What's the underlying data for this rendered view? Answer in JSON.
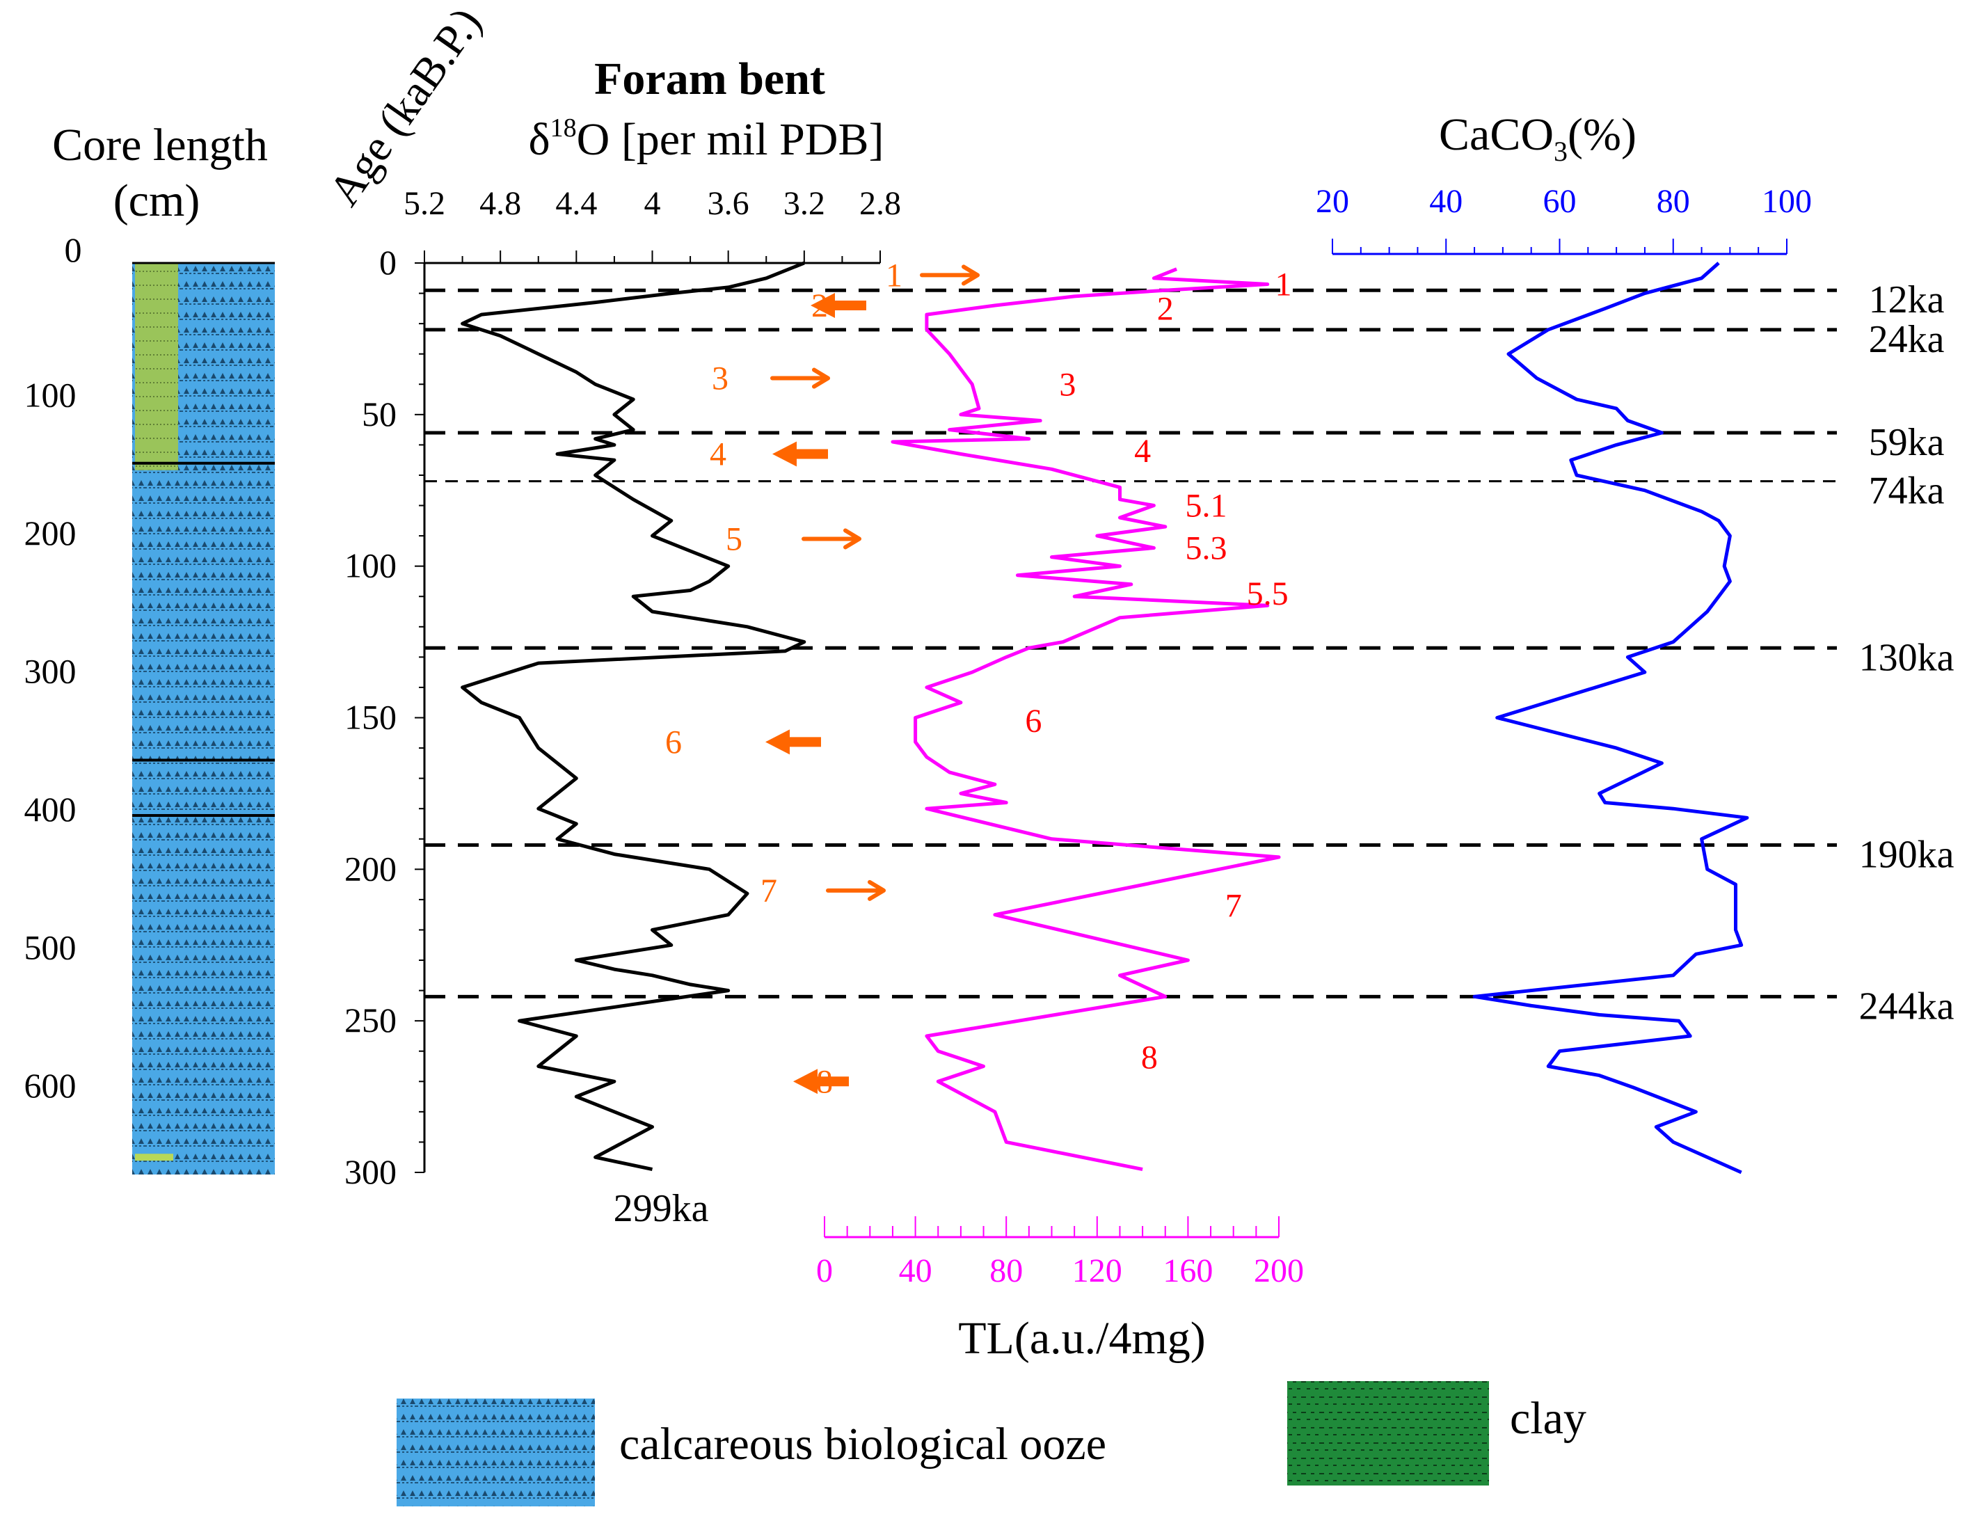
{
  "core": {
    "title_line1": "Core length",
    "title_line2": "(cm)",
    "depth_ticks": [
      "0",
      "100",
      "200",
      "300",
      "400",
      "500",
      "600"
    ],
    "depth_values": [
      0,
      100,
      200,
      300,
      400,
      500,
      600
    ],
    "depth_range": [
      0,
      660
    ],
    "clay_intervals": [
      [
        0,
        150
      ],
      [
        645,
        650
      ]
    ]
  },
  "age_axis": {
    "label": "Age (kaB.P.)",
    "ticks": [
      "0",
      "50",
      "100",
      "150",
      "200",
      "250",
      "300"
    ],
    "values": [
      0,
      50,
      100,
      150,
      200,
      250,
      300
    ]
  },
  "o18": {
    "title_line1": "Foram bent",
    "title_line2_main": "δ",
    "title_line2_sup": "18",
    "title_line2_rest": "O [per mil PDB]",
    "ticks": [
      "5.2",
      "4.8",
      "4.4",
      "4",
      "3.6",
      "3.2",
      "2.8"
    ],
    "tick_values": [
      5.2,
      4.8,
      4.4,
      4.0,
      3.6,
      3.2,
      2.8
    ],
    "end_label": "299ka",
    "color": "#000000"
  },
  "tl": {
    "label": "TL(a.u./4mg)",
    "ticks": [
      "0",
      "40",
      "80",
      "120",
      "160",
      "200"
    ],
    "tick_values": [
      0,
      40,
      80,
      120,
      160,
      200
    ],
    "color": "#ff00ff",
    "peak_labels": [
      {
        "text": "1",
        "age": 7,
        "tl": 202
      },
      {
        "text": "2",
        "age": 15,
        "tl": 150
      },
      {
        "text": "3",
        "age": 40,
        "tl": 107
      },
      {
        "text": "4",
        "age": 62,
        "tl": 140
      },
      {
        "text": "5.1",
        "age": 80,
        "tl": 168
      },
      {
        "text": "5.3",
        "age": 94,
        "tl": 168
      },
      {
        "text": "5.5",
        "age": 109,
        "tl": 195
      },
      {
        "text": "6",
        "age": 151,
        "tl": 92
      },
      {
        "text": "7",
        "age": 212,
        "tl": 180
      },
      {
        "text": "8",
        "age": 262,
        "tl": 143
      }
    ]
  },
  "caco3": {
    "title_main": "CaCO",
    "title_sub": "3",
    "title_rest": "(%)",
    "ticks": [
      "20",
      "40",
      "60",
      "80",
      "100"
    ],
    "tick_values": [
      20,
      40,
      60,
      80,
      100
    ],
    "color": "#0000ff"
  },
  "stages": [
    {
      "text": "1",
      "age": 4,
      "arrow": "right"
    },
    {
      "text": "2",
      "age": 14,
      "arrow": "left"
    },
    {
      "text": "3",
      "age": 38,
      "arrow": "right"
    },
    {
      "text": "4",
      "age": 63,
      "arrow": "left"
    },
    {
      "text": "5",
      "age": 91,
      "arrow": "right"
    },
    {
      "text": "6",
      "age": 158,
      "arrow": "left"
    },
    {
      "text": "7",
      "age": 207,
      "arrow": "right"
    },
    {
      "text": "8",
      "age": 270,
      "arrow": "left"
    }
  ],
  "stage_color": "#ff6600",
  "boundaries": [
    {
      "label": "12ka",
      "age": 9
    },
    {
      "label": "24ka",
      "age": 22
    },
    {
      "label": "59ka",
      "age": 56
    },
    {
      "label": "74ka",
      "age": 72
    },
    {
      "label": "130ka",
      "age": 127
    },
    {
      "label": "190ka",
      "age": 192
    },
    {
      "label": "244ka",
      "age": 242
    }
  ],
  "legend": {
    "ooze_label": "calcareous biological ooze",
    "clay_label": "clay",
    "ooze_color": "#4aa8e6",
    "clay_color": "#1f8a3a"
  },
  "chart_data": [
    {
      "type": "line",
      "title": "Foram bent δ18O [per mil PDB]",
      "xlabel": "δ18O [per mil PDB]",
      "ylabel": "Age (kaB.P.)",
      "xlim": [
        5.2,
        2.8
      ],
      "ylim": [
        0,
        300
      ],
      "series": [
        {
          "name": "Foram bent δ18O",
          "x": [
            3.2,
            3.4,
            3.6,
            3.9,
            4.3,
            4.9,
            5.0,
            4.8,
            4.6,
            4.4,
            4.3,
            4.1,
            4.2,
            4.1,
            4.3,
            4.2,
            4.5,
            4.2,
            4.3,
            4.1,
            3.9,
            4.0,
            3.8,
            3.6,
            3.7,
            3.8,
            4.1,
            4.0,
            3.7,
            3.5,
            3.2,
            3.3,
            4.6,
            5.0,
            4.9,
            4.7,
            4.6,
            4.4,
            4.6,
            4.4,
            4.5,
            4.2,
            3.7,
            3.5,
            3.6,
            4.0,
            3.9,
            4.4,
            4.2,
            4.0,
            3.8,
            3.6,
            4.7,
            4.4,
            4.6,
            4.2,
            4.4,
            4.0,
            4.3,
            4.0
          ],
          "y": [
            0,
            5,
            8,
            10,
            13,
            17,
            20,
            24,
            30,
            36,
            40,
            45,
            50,
            55,
            58,
            60,
            63,
            65,
            70,
            78,
            85,
            90,
            95,
            100,
            105,
            108,
            110,
            115,
            118,
            120,
            125,
            128,
            132,
            140,
            145,
            150,
            160,
            170,
            180,
            185,
            190,
            195,
            200,
            208,
            215,
            220,
            225,
            230,
            233,
            235,
            238,
            240,
            250,
            255,
            265,
            270,
            275,
            285,
            295,
            299
          ]
        }
      ]
    },
    {
      "type": "line",
      "title": "TL",
      "xlabel": "TL(a.u./4mg)",
      "ylabel": "Age (kaB.P.)",
      "xlim": [
        0,
        200
      ],
      "ylim": [
        0,
        300
      ],
      "series": [
        {
          "name": "TL",
          "x": [
            155,
            145,
            195,
            150,
            110,
            75,
            45,
            45,
            55,
            65,
            68,
            60,
            95,
            55,
            90,
            30,
            60,
            100,
            130,
            130,
            145,
            130,
            150,
            120,
            145,
            100,
            130,
            85,
            135,
            110,
            195,
            130,
            105,
            90,
            80,
            65,
            45,
            60,
            40,
            40,
            45,
            55,
            75,
            60,
            80,
            45,
            100,
            200,
            75,
            160,
            130,
            150,
            45,
            50,
            70,
            50,
            75,
            80,
            140
          ],
          "y": [
            2,
            5,
            7,
            9,
            11,
            14,
            17,
            22,
            30,
            40,
            48,
            50,
            52,
            55,
            58,
            59,
            63,
            68,
            74,
            78,
            80,
            84,
            87,
            90,
            94,
            97,
            100,
            103,
            106,
            110,
            113,
            117,
            125,
            127,
            130,
            135,
            140,
            145,
            150,
            158,
            163,
            168,
            172,
            175,
            178,
            180,
            190,
            196,
            215,
            230,
            235,
            242,
            255,
            260,
            265,
            270,
            280,
            290,
            299
          ]
        }
      ]
    },
    {
      "type": "line",
      "title": "CaCO3 (%)",
      "xlabel": "CaCO3(%)",
      "ylabel": "Age (kaB.P.)",
      "xlim": [
        20,
        100
      ],
      "ylim": [
        0,
        300
      ],
      "series": [
        {
          "name": "CaCO3",
          "x": [
            88,
            85,
            75,
            68,
            58,
            51,
            56,
            63,
            70,
            72,
            78,
            70,
            62,
            63,
            75,
            85,
            88,
            90,
            89,
            90,
            88,
            86,
            80,
            72,
            75,
            49,
            70,
            78,
            67,
            68,
            80,
            93,
            85,
            86,
            91,
            91,
            92,
            84,
            80,
            45,
            55,
            67,
            81,
            83,
            60,
            58,
            67,
            73,
            84,
            77,
            80,
            92
          ],
          "y": [
            0,
            5,
            10,
            15,
            22,
            30,
            38,
            45,
            48,
            52,
            56,
            60,
            65,
            70,
            75,
            82,
            85,
            90,
            100,
            105,
            110,
            115,
            125,
            130,
            135,
            150,
            160,
            165,
            175,
            178,
            180,
            183,
            190,
            200,
            205,
            220,
            225,
            228,
            235,
            242,
            245,
            248,
            250,
            255,
            260,
            265,
            268,
            272,
            280,
            285,
            290,
            300
          ]
        }
      ]
    }
  ]
}
